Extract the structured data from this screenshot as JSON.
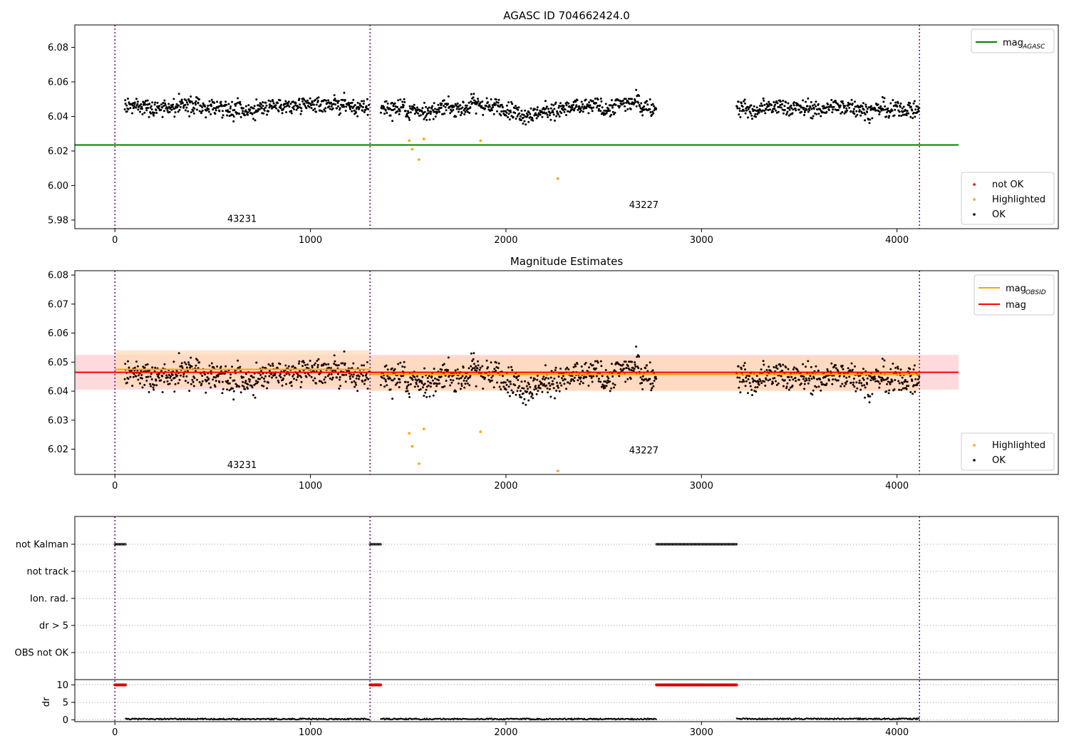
{
  "chart_data": [
    {
      "type": "scatter",
      "title": "AGASC ID 704662424.0",
      "xlim": [
        -205,
        4825
      ],
      "ylim": [
        5.975,
        6.093
      ],
      "x_ticks": [
        0,
        1000,
        2000,
        3000,
        4000
      ],
      "y_ticks": [
        5.98,
        6.0,
        6.02,
        6.04,
        6.06,
        6.08
      ],
      "x_tick_labels": [
        "0",
        "1000",
        "2000",
        "3000",
        "4000"
      ],
      "y_tick_labels": [
        "5.98",
        "6.00",
        "6.02",
        "6.04",
        "6.06",
        "6.08"
      ],
      "vlines_x": [
        0,
        1305,
        4115
      ],
      "lines": [
        {
          "name": "mag_AGASC",
          "color": "#008000",
          "y": 6.0235,
          "x_range": [
            -205,
            4315
          ]
        }
      ],
      "ok_segments": [
        {
          "x_start": 50,
          "x_end": 1300,
          "y_center": 6.0465,
          "color": "#000000"
        },
        {
          "x_start": 1360,
          "x_end": 2770,
          "y_center": 6.0455,
          "color": "#000000"
        },
        {
          "x_start": 3180,
          "x_end": 4115,
          "y_center": 6.0455,
          "color": "#000000"
        }
      ],
      "highlighted_points": [
        {
          "x": 1505,
          "y": 6.026
        },
        {
          "x": 1520,
          "y": 6.021
        },
        {
          "x": 1555,
          "y": 6.015
        },
        {
          "x": 1580,
          "y": 6.027
        },
        {
          "x": 1870,
          "y": 6.026
        },
        {
          "x": 2265,
          "y": 6.004
        }
      ],
      "annotations": [
        {
          "text": "43231",
          "x": 650,
          "y": 5.979
        },
        {
          "text": "43227",
          "x": 2705,
          "y": 5.987
        }
      ],
      "legend_top": {
        "position": "top-right",
        "entries": [
          {
            "label": "mag",
            "sub": "AGASC",
            "color": "#008000"
          }
        ]
      },
      "legend_bottom": {
        "position": "bottom-right",
        "entries": [
          {
            "label": "not OK",
            "color": "#ff0000"
          },
          {
            "label": "Highlighted",
            "color": "#ffa500"
          },
          {
            "label": "OK",
            "color": "#000000"
          }
        ]
      }
    },
    {
      "type": "scatter",
      "title": "Magnitude Estimates",
      "xlim": [
        -205,
        4825
      ],
      "ylim": [
        6.0113,
        6.0815
      ],
      "x_ticks": [
        0,
        1000,
        2000,
        3000,
        4000
      ],
      "y_ticks": [
        6.02,
        6.03,
        6.04,
        6.05,
        6.06,
        6.07,
        6.08
      ],
      "x_tick_labels": [
        "0",
        "1000",
        "2000",
        "3000",
        "4000"
      ],
      "y_tick_labels": [
        "6.02",
        "6.03",
        "6.04",
        "6.05",
        "6.06",
        "6.07",
        "6.08"
      ],
      "vlines_x": [
        0,
        1305,
        4115
      ],
      "bands": [
        {
          "y0": 6.0405,
          "y1": 6.0525,
          "x_range": [
            -205,
            4315
          ],
          "color": "#ffcdd2"
        },
        {
          "y0": 6.0415,
          "y1": 6.054,
          "x_range": [
            0,
            1305
          ],
          "color": "#ffd9b8"
        },
        {
          "y0": 6.04,
          "y1": 6.052,
          "x_range": [
            1305,
            4115
          ],
          "color": "#ffd9b8"
        }
      ],
      "lines": [
        {
          "name": "mag",
          "color": "#ff0000",
          "y": 6.0465,
          "x_range": [
            -205,
            4315
          ]
        },
        {
          "name": "mag_OBSID",
          "color": "#ffa500",
          "y": 6.0475,
          "x_range": [
            0,
            1305
          ]
        },
        {
          "name": "mag_OBSID",
          "color": "#ffa500",
          "y": 6.0458,
          "x_range": [
            1305,
            4115
          ]
        }
      ],
      "ok_segments": [
        {
          "x_start": 50,
          "x_end": 1300,
          "y_center": 6.0465,
          "color": "#1a0800"
        },
        {
          "x_start": 1360,
          "x_end": 2770,
          "y_center": 6.0455,
          "color": "#1a0800"
        },
        {
          "x_start": 3180,
          "x_end": 4115,
          "y_center": 6.0455,
          "color": "#1a0800"
        }
      ],
      "highlighted_points": [
        {
          "x": 1505,
          "y": 6.0255
        },
        {
          "x": 1520,
          "y": 6.021
        },
        {
          "x": 1555,
          "y": 6.015
        },
        {
          "x": 1580,
          "y": 6.027
        },
        {
          "x": 1870,
          "y": 6.026
        },
        {
          "x": 2265,
          "y": 6.0125
        }
      ],
      "annotations": [
        {
          "text": "43231",
          "x": 650,
          "y": 6.0135
        },
        {
          "text": "43227",
          "x": 2705,
          "y": 6.0185
        }
      ],
      "legend_top": {
        "position": "top-right",
        "entries": [
          {
            "label": "mag",
            "sub": "OBSID",
            "color": "#ffa500"
          },
          {
            "label": "mag",
            "sub": "",
            "color": "#ff0000"
          }
        ]
      },
      "legend_bottom": {
        "position": "bottom-right",
        "entries": [
          {
            "label": "Highlighted",
            "color": "#ffa500"
          },
          {
            "label": "OK",
            "color": "#000000"
          }
        ]
      }
    },
    {
      "type": "scatter",
      "title": "",
      "xlim": [
        -205,
        4825
      ],
      "x_ticks": [
        0,
        1000,
        2000,
        3000,
        4000
      ],
      "x_tick_labels": [
        "0",
        "1000",
        "2000",
        "3000",
        "4000"
      ],
      "vlines_x": [
        0,
        1305,
        4115
      ],
      "flag_rows": [
        "not Kalman",
        "not track",
        "Ion. rad.",
        "dr > 5",
        "OBS not OK"
      ],
      "flag_points": [
        {
          "row": "not Kalman",
          "x_start": 0,
          "x_end": 55
        },
        {
          "row": "not Kalman",
          "x_start": 1305,
          "x_end": 1360
        },
        {
          "row": "not Kalman",
          "x_start": 2770,
          "x_end": 3180
        }
      ],
      "dr": {
        "ylabel": "dr",
        "ylim": [
          -0.5,
          11.5
        ],
        "y_ticks": [
          0,
          5,
          10
        ],
        "y_tick_labels": [
          "0",
          "5",
          "10"
        ],
        "clipped_value": 10,
        "clipped_ranges": [
          [
            0,
            55
          ],
          [
            1305,
            1360
          ],
          [
            2770,
            3180
          ]
        ],
        "baseline_ranges": [
          {
            "x_start": 55,
            "x_end": 1300,
            "y": 0.25
          },
          {
            "x_start": 1360,
            "x_end": 2770,
            "y": 0.25
          },
          {
            "x_start": 3180,
            "x_end": 4115,
            "y": 0.3
          }
        ]
      }
    }
  ]
}
